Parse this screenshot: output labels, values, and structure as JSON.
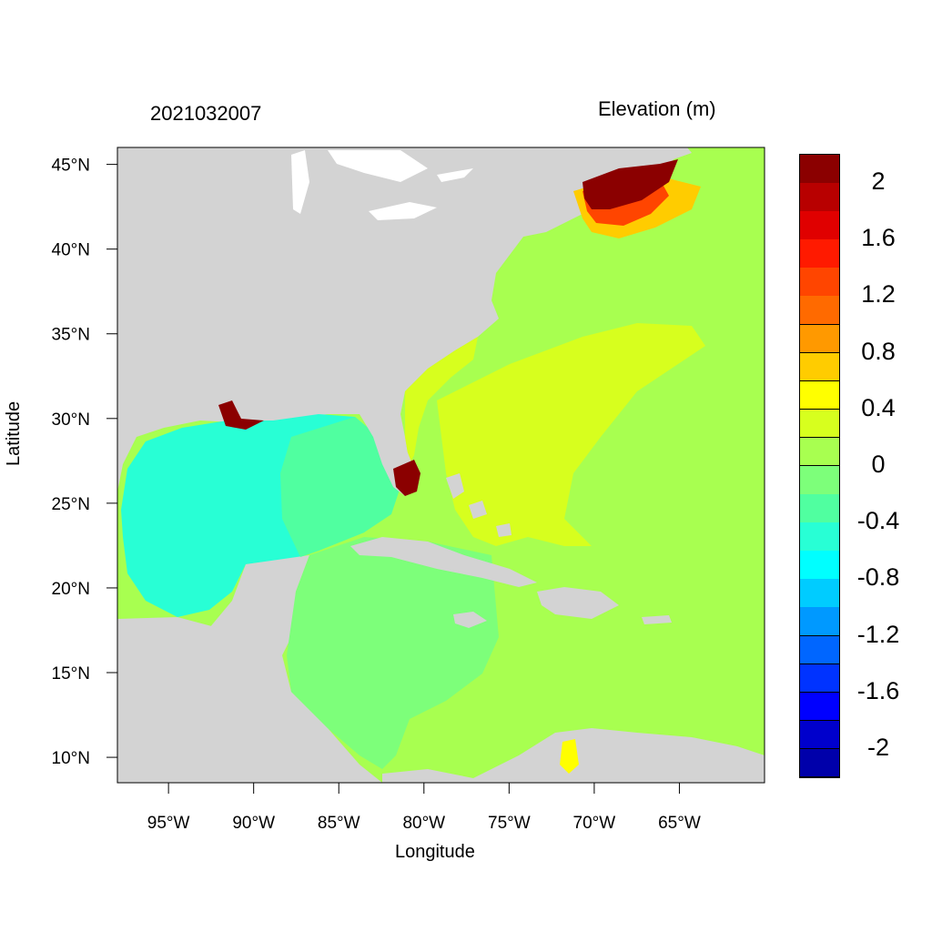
{
  "header": {
    "date": "2021032007",
    "variable": "Elevation (m)"
  },
  "axes": {
    "xlabel": "Longitude",
    "ylabel": "Latitude",
    "xticks": [
      "95°W",
      "90°W",
      "85°W",
      "80°W",
      "75°W",
      "70°W",
      "65°W"
    ],
    "yticks": [
      "45°N",
      "40°N",
      "35°N",
      "30°N",
      "25°N",
      "20°N",
      "15°N",
      "10°N"
    ],
    "xlim": [
      -98,
      -60
    ],
    "ylim": [
      8.5,
      46
    ]
  },
  "legend": {
    "levels": [
      "2",
      "1.6",
      "1.2",
      "0.8",
      "0.4",
      "0",
      "-0.4",
      "-0.8",
      "-1.2",
      "-1.6",
      "-2"
    ],
    "colors": [
      "#8b0000",
      "#b80000",
      "#e00000",
      "#ff1a00",
      "#ff4500",
      "#ff6a00",
      "#ff9900",
      "#ffcc00",
      "#ffff00",
      "#d7ff1e",
      "#a8ff50",
      "#7dff7a",
      "#50ffa0",
      "#28ffd5",
      "#00ffff",
      "#00ccff",
      "#0099ff",
      "#0066ff",
      "#0033ff",
      "#0000ff",
      "#0000cc",
      "#0000aa"
    ]
  },
  "colors": {
    "land": "#d3d3d3",
    "water_gulf": "#28ffd5",
    "water_caribbean": "#7dff7a",
    "water_atlantic": "#a8ff50",
    "water_high": "#d7ff1e",
    "surge_peak": "#8b0000"
  }
}
